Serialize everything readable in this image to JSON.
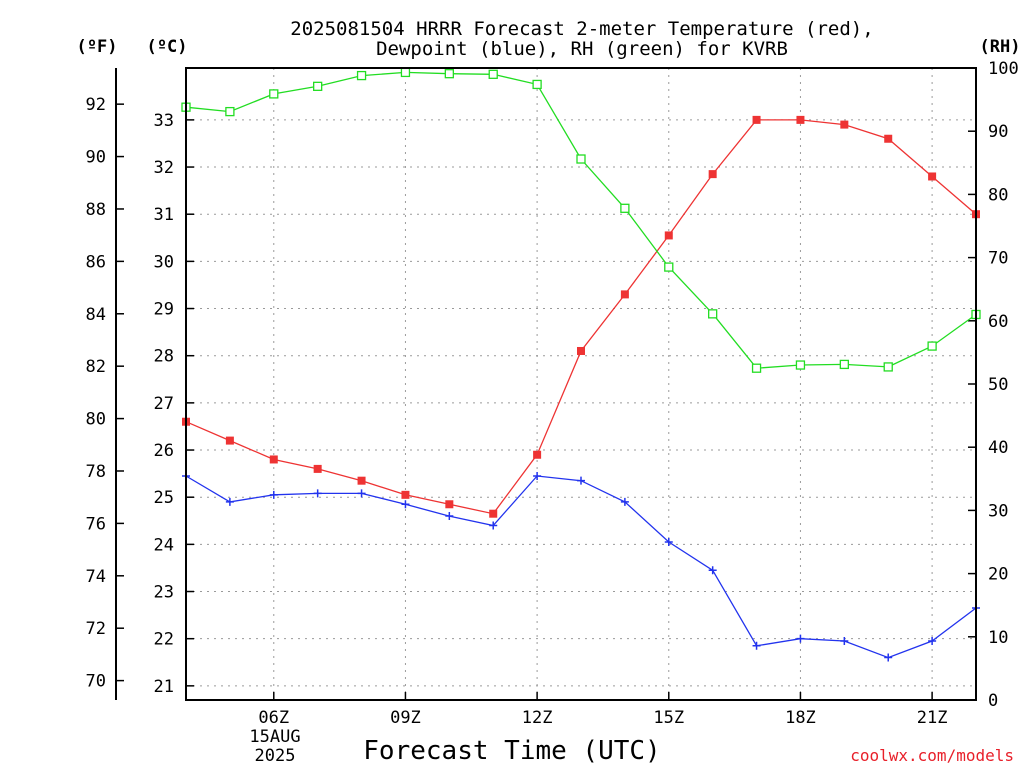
{
  "chart_data": {
    "type": "line",
    "title": [
      "2025081504 HRRR Forecast 2-meter Temperature (red),",
      "Dewpoint (blue), RH (green) for KVRB"
    ],
    "xlabel": "Forecast Time (UTC)",
    "units": {
      "fahrenheit": "(ºF)",
      "celsius": "(ºC)",
      "rh": "(RH)"
    },
    "x_hours": [
      4,
      5,
      6,
      7,
      8,
      9,
      10,
      11,
      12,
      13,
      14,
      15,
      16,
      17,
      18,
      19,
      20,
      21,
      22
    ],
    "xlim": [
      4,
      22
    ],
    "x_ticks": [
      {
        "hour": 6,
        "label": "06Z"
      },
      {
        "hour": 9,
        "label": "09Z"
      },
      {
        "hour": 12,
        "label": "12Z"
      },
      {
        "hour": 15,
        "label": "15Z"
      },
      {
        "hour": 18,
        "label": "18Z"
      },
      {
        "hour": 21,
        "label": "21Z"
      }
    ],
    "date_label": [
      "15AUG",
      "2025"
    ],
    "celsius_axis": {
      "lim": [
        20.7,
        34.1
      ],
      "ticks": [
        21,
        22,
        23,
        24,
        25,
        26,
        27,
        28,
        29,
        30,
        31,
        32,
        33
      ]
    },
    "fahrenheit_ticks": [
      70,
      72,
      74,
      76,
      78,
      80,
      82,
      84,
      86,
      88,
      90,
      92
    ],
    "rh_axis": {
      "lim": [
        0,
        100
      ],
      "ticks": [
        0,
        10,
        20,
        30,
        40,
        50,
        60,
        70,
        80,
        90,
        100
      ]
    },
    "series": [
      {
        "name": "Temperature",
        "axis": "celsius",
        "color": "#ee3333",
        "marker": "filled-square",
        "values": [
          26.6,
          26.2,
          25.8,
          25.6,
          25.35,
          25.05,
          24.85,
          24.65,
          25.9,
          28.1,
          29.3,
          30.55,
          31.85,
          33.0,
          33.0,
          32.9,
          32.6,
          31.8,
          31.0
        ]
      },
      {
        "name": "Dewpoint",
        "axis": "celsius",
        "color": "#2233ee",
        "marker": "plus",
        "values": [
          25.45,
          24.9,
          25.05,
          25.08,
          25.08,
          24.85,
          24.6,
          24.4,
          25.45,
          25.35,
          24.9,
          24.05,
          23.45,
          21.85,
          22.0,
          21.95,
          21.6,
          21.95,
          22.65
        ]
      },
      {
        "name": "RH",
        "axis": "rh",
        "color": "#22dd22",
        "marker": "open-square",
        "values": [
          93.8,
          93.1,
          95.9,
          97.1,
          98.8,
          99.3,
          99.1,
          99.0,
          97.4,
          85.6,
          77.8,
          68.5,
          61.1,
          52.5,
          53.0,
          53.1,
          52.7,
          56.0,
          61.0
        ]
      }
    ]
  },
  "credit": "coolwx.com/models"
}
